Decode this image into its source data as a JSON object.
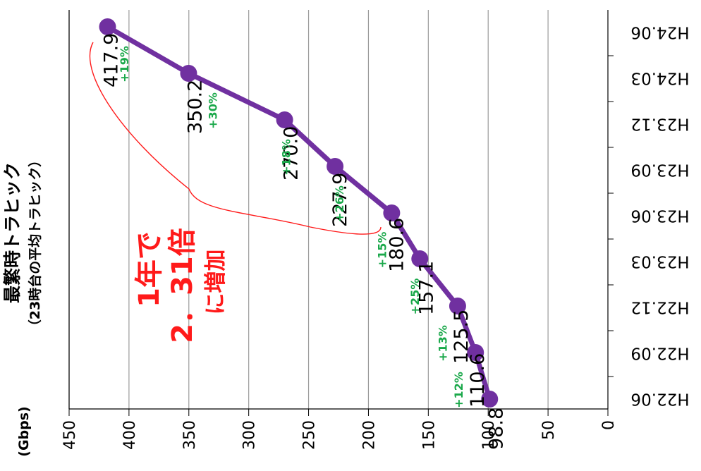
{
  "chart_data": {
    "type": "line",
    "title": "最繁時トラヒック",
    "subtitle": "（23時台の平均トラヒック）",
    "unit_label": "(Gbps)",
    "categories": [
      "H22.06",
      "H22.09",
      "H22.12",
      "H23.03",
      "H23.06",
      "H23.09",
      "H23.12",
      "H24.03",
      "H24.06"
    ],
    "values": [
      98.8,
      110.6,
      125.5,
      157.1,
      180.6,
      227.9,
      270.0,
      350.2,
      417.9
    ],
    "value_labels": [
      "98.8",
      "110.6",
      "125.5",
      "157.1",
      "180.6",
      "227.9",
      "270.0",
      "350.2",
      "417.9"
    ],
    "growth_labels": [
      "+12%",
      "+13%",
      "+25%",
      "+15%",
      "+26%",
      "+18%",
      "+30%",
      "+19%"
    ],
    "yticks": [
      "0",
      "50",
      "100",
      "150",
      "200",
      "250",
      "300",
      "350",
      "400",
      "450"
    ],
    "ylim": [
      0,
      450
    ],
    "grid": true,
    "series_color": "#7030a0",
    "growth_color": "#1aa84a",
    "annotation_color": "#ff1a1a",
    "annotation": {
      "line1": "1年で",
      "line2": "2．31倍",
      "line3": "に増加"
    }
  }
}
